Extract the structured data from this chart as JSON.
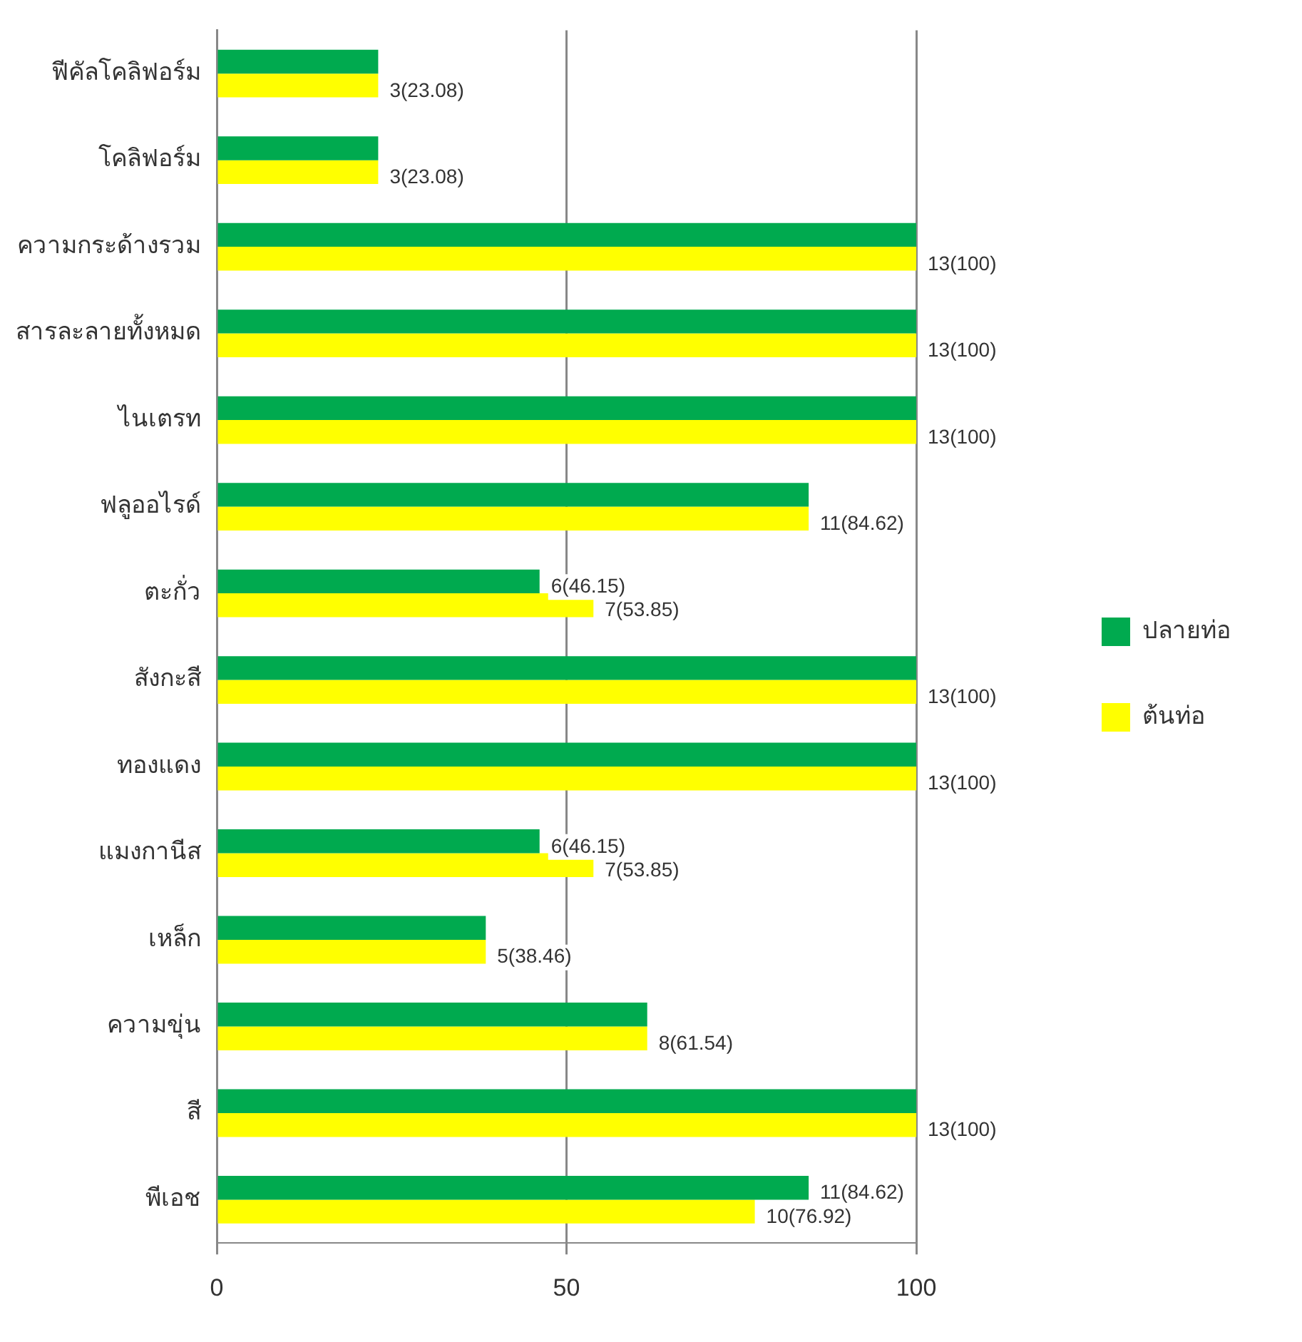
{
  "chart_data": {
    "type": "bar",
    "orientation": "horizontal",
    "categories": [
      "ฟีคัลโคลิฟอร์ม",
      "โคลิฟอร์ม",
      "ความกระด้างรวม",
      "สารละลายทั้งหมด",
      "ไนเตรท",
      "ฟลูออไรด์",
      "ตะกั่ว",
      "สังกะสี",
      "ทองแดง",
      "แมงกานีส",
      "เหล็ก",
      "ความขุ่น",
      "สี",
      "พีเอช"
    ],
    "series": [
      {
        "name": "ปลายท่อ",
        "color": "#00aa4f",
        "values": [
          23.08,
          23.08,
          100,
          100,
          100,
          84.62,
          46.15,
          100,
          100,
          46.15,
          38.46,
          61.54,
          100,
          84.62
        ],
        "value_labels": [
          null,
          null,
          null,
          null,
          null,
          null,
          "6(46.15)",
          null,
          null,
          "6(46.15)",
          null,
          null,
          null,
          "11(84.62)"
        ]
      },
      {
        "name": "ต้นท่อ",
        "color": "#ffff00",
        "values": [
          23.08,
          23.08,
          100,
          100,
          100,
          84.62,
          53.85,
          100,
          100,
          53.85,
          38.46,
          61.54,
          100,
          76.92
        ],
        "value_labels": [
          "3(23.08)",
          "3(23.08)",
          "13(100)",
          "13(100)",
          "13(100)",
          "11(84.62)",
          "7(53.85)",
          "13(100)",
          "13(100)",
          "7(53.85)",
          "5(38.46)",
          "8(61.54)",
          "13(100)",
          "10(76.92)"
        ]
      }
    ],
    "xlim": [
      0,
      100
    ],
    "xticks": [
      0,
      50,
      100
    ],
    "grid": "x",
    "legend": "right"
  }
}
